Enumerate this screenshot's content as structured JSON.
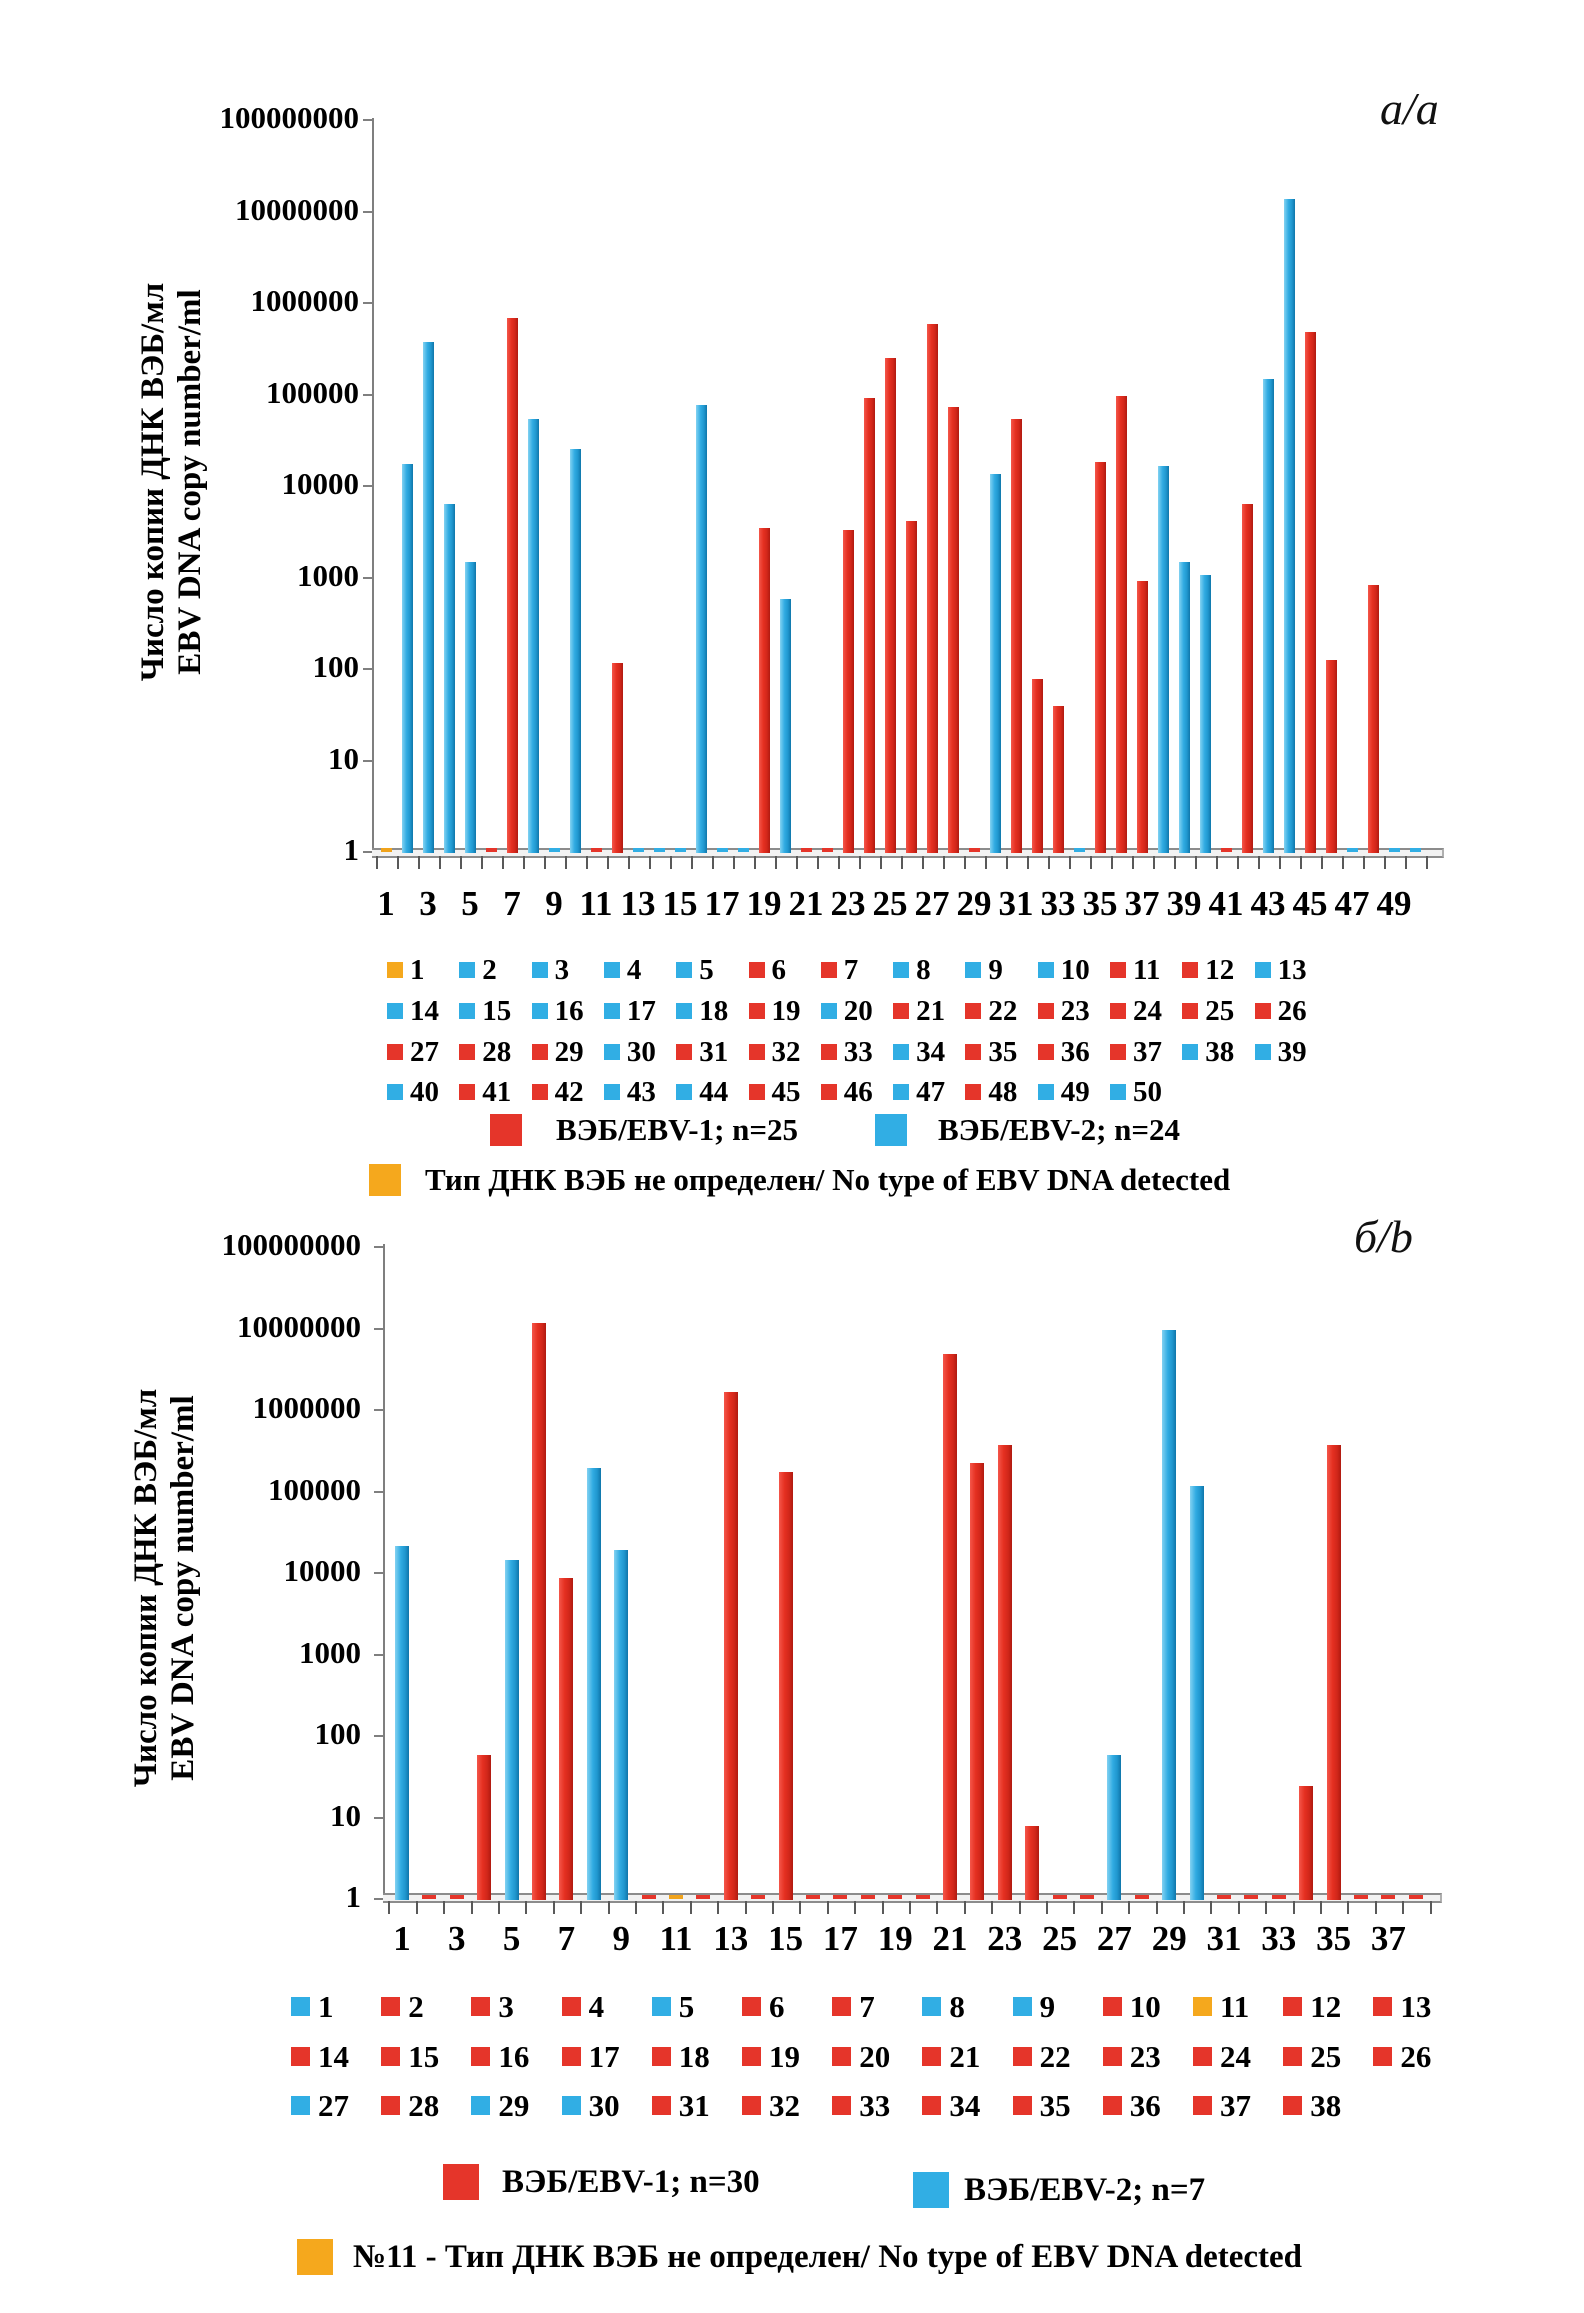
{
  "figure": {
    "background": "#ffffff",
    "colors": {
      "ebv1": "#e5352a",
      "ebv2": "#31aee4",
      "none": "#f5a81d",
      "axis": "#7f7f7f"
    }
  },
  "chart_data": [
    {
      "type": "bar",
      "panel_label": "а/a",
      "ylabel_line1": "Число копии ДНК ВЭБ/мл",
      "ylabel_line2": "EBV DNA copy number/ml",
      "yscale": "log",
      "ylim": [
        1,
        100000000
      ],
      "y_ticks": [
        "1",
        "10",
        "100",
        "1000",
        "10000",
        "100000",
        "1000000",
        "10000000",
        "100000000"
      ],
      "x_tick_labels": [
        "1",
        "3",
        "5",
        "7",
        "9",
        "11",
        "13",
        "15",
        "17",
        "19",
        "21",
        "23",
        "25",
        "27",
        "29",
        "31",
        "33",
        "35",
        "37",
        "39",
        "41",
        "43",
        "45",
        "47",
        "49"
      ],
      "grid": false,
      "legend_position": "bottom",
      "series_legend": [
        {
          "key": "ebv1",
          "label": "ВЭБ/EBV-1; n=25"
        },
        {
          "key": "ebv2",
          "label": "ВЭБ/EBV-2; n=24"
        }
      ],
      "note_legend": {
        "key": "none",
        "label": "Тип ДНК ВЭБ не определен/ No type of EBV DNA detected"
      },
      "points": [
        {
          "n": 1,
          "series": "none",
          "value": 1
        },
        {
          "n": 2,
          "series": "ebv2",
          "value": 18000
        },
        {
          "n": 3,
          "series": "ebv2",
          "value": 380000
        },
        {
          "n": 4,
          "series": "ebv2",
          "value": 6500
        },
        {
          "n": 5,
          "series": "ebv2",
          "value": 1500
        },
        {
          "n": 6,
          "series": "ebv1",
          "value": 1
        },
        {
          "n": 7,
          "series": "ebv1",
          "value": 700000
        },
        {
          "n": 8,
          "series": "ebv2",
          "value": 55000
        },
        {
          "n": 9,
          "series": "ebv2",
          "value": 1
        },
        {
          "n": 10,
          "series": "ebv2",
          "value": 26000
        },
        {
          "n": 11,
          "series": "ebv1",
          "value": 1
        },
        {
          "n": 12,
          "series": "ebv1",
          "value": 120
        },
        {
          "n": 13,
          "series": "ebv2",
          "value": 1
        },
        {
          "n": 14,
          "series": "ebv2",
          "value": 1
        },
        {
          "n": 15,
          "series": "ebv2",
          "value": 1
        },
        {
          "n": 16,
          "series": "ebv2",
          "value": 78000
        },
        {
          "n": 17,
          "series": "ebv2",
          "value": 1
        },
        {
          "n": 18,
          "series": "ebv2",
          "value": 1
        },
        {
          "n": 19,
          "series": "ebv1",
          "value": 3600
        },
        {
          "n": 20,
          "series": "ebv2",
          "value": 600
        },
        {
          "n": 21,
          "series": "ebv1",
          "value": 1
        },
        {
          "n": 22,
          "series": "ebv1",
          "value": 1
        },
        {
          "n": 23,
          "series": "ebv1",
          "value": 3400
        },
        {
          "n": 24,
          "series": "ebv1",
          "value": 95000
        },
        {
          "n": 25,
          "series": "ebv1",
          "value": 260000
        },
        {
          "n": 26,
          "series": "ebv1",
          "value": 4300
        },
        {
          "n": 27,
          "series": "ebv1",
          "value": 600000
        },
        {
          "n": 28,
          "series": "ebv1",
          "value": 75000
        },
        {
          "n": 29,
          "series": "ebv1",
          "value": 1
        },
        {
          "n": 30,
          "series": "ebv2",
          "value": 14000
        },
        {
          "n": 31,
          "series": "ebv1",
          "value": 55000
        },
        {
          "n": 32,
          "series": "ebv1",
          "value": 80
        },
        {
          "n": 33,
          "series": "ebv1",
          "value": 40
        },
        {
          "n": 34,
          "series": "ebv2",
          "value": 1
        },
        {
          "n": 35,
          "series": "ebv1",
          "value": 19000
        },
        {
          "n": 36,
          "series": "ebv1",
          "value": 100000
        },
        {
          "n": 37,
          "series": "ebv1",
          "value": 950
        },
        {
          "n": 38,
          "series": "ebv2",
          "value": 17000
        },
        {
          "n": 39,
          "series": "ebv2",
          "value": 1500
        },
        {
          "n": 40,
          "series": "ebv2",
          "value": 1100
        },
        {
          "n": 41,
          "series": "ebv1",
          "value": 1
        },
        {
          "n": 42,
          "series": "ebv1",
          "value": 6500
        },
        {
          "n": 43,
          "series": "ebv2",
          "value": 150000
        },
        {
          "n": 44,
          "series": "ebv2",
          "value": 14000000
        },
        {
          "n": 45,
          "series": "ebv1",
          "value": 500000
        },
        {
          "n": 46,
          "series": "ebv1",
          "value": 130
        },
        {
          "n": 47,
          "series": "ebv2",
          "value": 1
        },
        {
          "n": 48,
          "series": "ebv1",
          "value": 850
        },
        {
          "n": 49,
          "series": "ebv2",
          "value": 1
        },
        {
          "n": 50,
          "series": "ebv2",
          "value": 1
        }
      ]
    },
    {
      "type": "bar",
      "panel_label": "б/b",
      "ylabel_line1": "Число копии ДНК ВЭБ/мл",
      "ylabel_line2": "EBV DNA copy number/ml",
      "yscale": "log",
      "ylim": [
        1,
        100000000
      ],
      "y_ticks": [
        "1",
        "10",
        "100",
        "1000",
        "10000",
        "100000",
        "1000000",
        "10000000",
        "100000000"
      ],
      "x_tick_labels": [
        "1",
        "3",
        "5",
        "7",
        "9",
        "11",
        "13",
        "15",
        "17",
        "19",
        "21",
        "23",
        "25",
        "27",
        "29",
        "31",
        "33",
        "35",
        "37"
      ],
      "grid": false,
      "legend_position": "bottom",
      "series_legend": [
        {
          "key": "ebv1",
          "label": "ВЭБ/EBV-1; n=30"
        },
        {
          "key": "ebv2",
          "label": "ВЭБ/EBV-2; n=7"
        }
      ],
      "note_legend": {
        "key": "none",
        "label": "№11 - Тип ДНК ВЭБ не определен/ No type of EBV DNA detected"
      },
      "points": [
        {
          "n": 1,
          "series": "ebv2",
          "value": 22000
        },
        {
          "n": 2,
          "series": "ebv1",
          "value": 1
        },
        {
          "n": 3,
          "series": "ebv1",
          "value": 1
        },
        {
          "n": 4,
          "series": "ebv1",
          "value": 60
        },
        {
          "n": 5,
          "series": "ebv2",
          "value": 15000
        },
        {
          "n": 6,
          "series": "ebv1",
          "value": 12000000
        },
        {
          "n": 7,
          "series": "ebv1",
          "value": 9000
        },
        {
          "n": 8,
          "series": "ebv2",
          "value": 200000
        },
        {
          "n": 9,
          "series": "ebv2",
          "value": 20000
        },
        {
          "n": 10,
          "series": "ebv1",
          "value": 1
        },
        {
          "n": 11,
          "series": "none",
          "value": 1
        },
        {
          "n": 12,
          "series": "ebv1",
          "value": 1
        },
        {
          "n": 13,
          "series": "ebv1",
          "value": 1700000
        },
        {
          "n": 14,
          "series": "ebv1",
          "value": 1
        },
        {
          "n": 15,
          "series": "ebv1",
          "value": 180000
        },
        {
          "n": 16,
          "series": "ebv1",
          "value": 1
        },
        {
          "n": 17,
          "series": "ebv1",
          "value": 1
        },
        {
          "n": 18,
          "series": "ebv1",
          "value": 1
        },
        {
          "n": 19,
          "series": "ebv1",
          "value": 1
        },
        {
          "n": 20,
          "series": "ebv1",
          "value": 1
        },
        {
          "n": 21,
          "series": "ebv1",
          "value": 5000000
        },
        {
          "n": 22,
          "series": "ebv1",
          "value": 230000
        },
        {
          "n": 23,
          "series": "ebv1",
          "value": 380000
        },
        {
          "n": 24,
          "series": "ebv1",
          "value": 8
        },
        {
          "n": 25,
          "series": "ebv1",
          "value": 1
        },
        {
          "n": 26,
          "series": "ebv1",
          "value": 1
        },
        {
          "n": 27,
          "series": "ebv2",
          "value": 60
        },
        {
          "n": 28,
          "series": "ebv1",
          "value": 1
        },
        {
          "n": 29,
          "series": "ebv2",
          "value": 10000000
        },
        {
          "n": 30,
          "series": "ebv2",
          "value": 120000
        },
        {
          "n": 31,
          "series": "ebv1",
          "value": 1
        },
        {
          "n": 32,
          "series": "ebv1",
          "value": 1
        },
        {
          "n": 33,
          "series": "ebv1",
          "value": 1
        },
        {
          "n": 34,
          "series": "ebv1",
          "value": 25
        },
        {
          "n": 35,
          "series": "ebv1",
          "value": 380000
        },
        {
          "n": 36,
          "series": "ebv1",
          "value": 1
        },
        {
          "n": 37,
          "series": "ebv1",
          "value": 1
        },
        {
          "n": 38,
          "series": "ebv1",
          "value": 1
        }
      ]
    }
  ]
}
